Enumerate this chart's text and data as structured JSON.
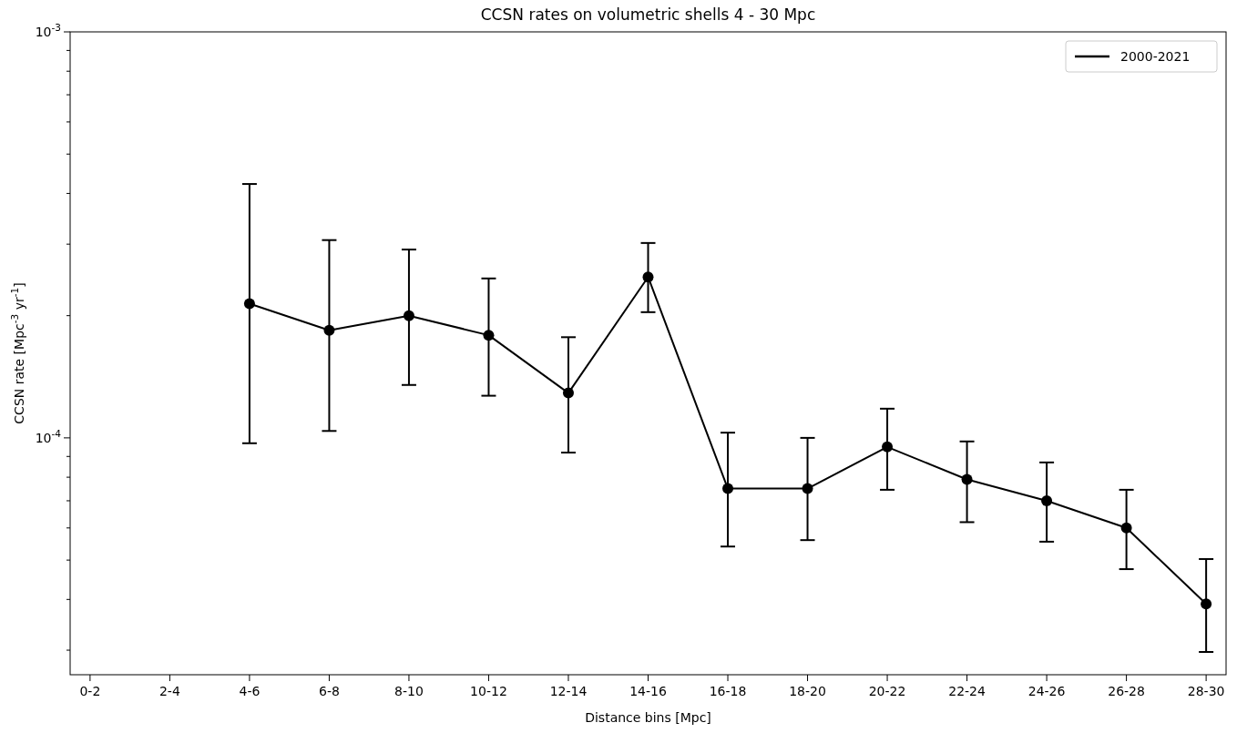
{
  "chart_data": {
    "type": "line",
    "title": "CCSN rates on volumetric shells 4 - 30 Mpc",
    "xlabel": "Distance bins [Mpc]",
    "ylabel": "CCSN rate [Mpc$^{-3}$ yr$^{-1}$]",
    "categories": [
      "0-2",
      "2-4",
      "4-6",
      "6-8",
      "8-10",
      "10-12",
      "12-14",
      "14-16",
      "16-18",
      "18-20",
      "20-22",
      "22-24",
      "24-26",
      "26-28",
      "28-30"
    ],
    "series": [
      {
        "name": "2000-2021",
        "color": "#000000",
        "values": [
          null,
          null,
          0.000214,
          0.000184,
          0.0002,
          0.000179,
          0.000129,
          0.000249,
          7.5e-05,
          7.5e-05,
          9.5e-05,
          7.9e-05,
          7e-05,
          6e-05,
          3.9e-05
        ],
        "errors": [
          null,
          null,
          [
            9.7e-05,
            0.000422
          ],
          [
            0.000104,
            0.000307
          ],
          [
            0.000135,
            0.000291
          ],
          [
            0.000127,
            0.000247
          ],
          [
            9.2e-05,
            0.000177
          ],
          [
            0.000204,
            0.000302
          ],
          [
            5.4e-05,
            0.000103
          ],
          [
            5.6e-05,
            0.0001
          ],
          [
            7.45e-05,
            0.000118
          ],
          [
            6.2e-05,
            9.8e-05
          ],
          [
            5.55e-05,
            8.7e-05
          ],
          [
            4.75e-05,
            7.45e-05
          ],
          [
            2.97e-05,
            5.03e-05
          ]
        ]
      }
    ],
    "log": "y",
    "ylim": [
      2.61e-05,
      0.001
    ],
    "yticks": [
      {
        "value": 3e-05,
        "label": null
      },
      {
        "value": 4e-05,
        "label": null
      },
      {
        "value": 5e-05,
        "label": null
      },
      {
        "value": 6e-05,
        "label": null
      },
      {
        "value": 7e-05,
        "label": null
      },
      {
        "value": 8e-05,
        "label": null
      },
      {
        "value": 9e-05,
        "label": null
      },
      {
        "value": 0.0001,
        "label": "10$^{-4}$"
      },
      {
        "value": 0.0002,
        "label": null
      },
      {
        "value": 0.0003,
        "label": null
      },
      {
        "value": 0.0004,
        "label": null
      },
      {
        "value": 0.0005,
        "label": null
      },
      {
        "value": 0.0006,
        "label": null
      },
      {
        "value": 0.0007,
        "label": null
      },
      {
        "value": 0.0008,
        "label": null
      },
      {
        "value": 0.0009,
        "label": null
      },
      {
        "value": 0.001,
        "label": "10$^{-3}$"
      }
    ],
    "grid": false,
    "legend": "top right",
    "marker": "circle",
    "line_style": "solid"
  }
}
